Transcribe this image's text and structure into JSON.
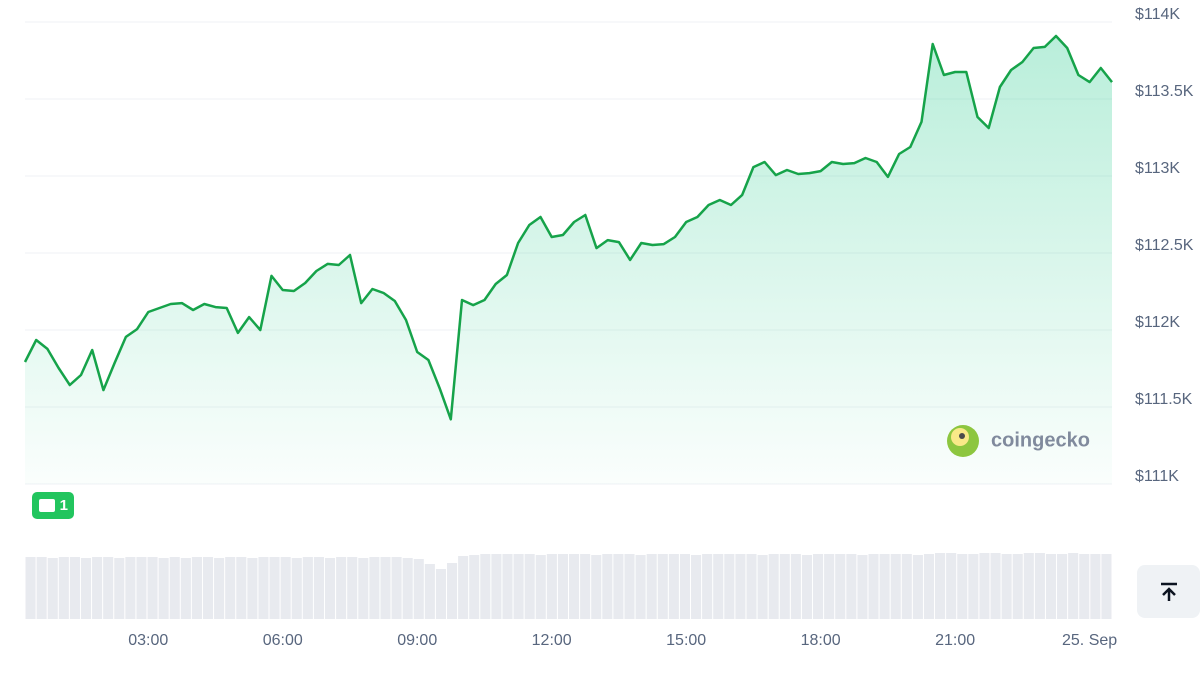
{
  "chart_data": {
    "type": "line",
    "x": [
      0.25,
      0.5,
      0.75,
      1,
      1.25,
      1.5,
      1.75,
      2,
      2.25,
      2.5,
      2.75,
      3,
      3.25,
      3.5,
      3.75,
      4,
      4.25,
      4.5,
      4.75,
      5,
      5.25,
      5.5,
      5.75,
      6,
      6.25,
      6.5,
      6.75,
      7,
      7.25,
      7.5,
      7.75,
      8,
      8.25,
      8.5,
      8.75,
      9,
      9.25,
      9.5,
      9.75,
      10,
      10.25,
      10.5,
      10.75,
      11,
      11.25,
      11.5,
      11.75,
      12,
      12.25,
      12.5,
      12.75,
      13,
      13.25,
      13.5,
      13.75,
      14,
      14.25,
      14.5,
      14.75,
      15,
      15.25,
      15.5,
      15.75,
      16,
      16.25,
      16.5,
      16.75,
      17,
      17.25,
      17.5,
      17.75,
      18,
      18.25,
      18.5,
      18.75,
      19,
      19.25,
      19.5,
      19.75,
      20,
      20.25,
      20.5,
      20.75,
      21,
      21.25,
      21.5,
      21.75,
      22,
      22.25,
      22.5,
      22.75,
      23,
      23.25,
      23.5,
      23.75,
      24,
      24.25,
      24.5
    ],
    "values": [
      111792,
      111935,
      111877,
      111753,
      111643,
      111708,
      111870,
      111610,
      111786,
      111955,
      112006,
      112117,
      112143,
      112169,
      112175,
      112130,
      112169,
      112149,
      112143,
      111981,
      112084,
      112000,
      112351,
      112260,
      112253,
      112305,
      112383,
      112429,
      112422,
      112487,
      112175,
      112266,
      112240,
      112188,
      112065,
      111857,
      111805,
      111623,
      111420,
      112195,
      112162,
      112195,
      112299,
      112357,
      112565,
      112682,
      112734,
      112604,
      112617,
      112701,
      112747,
      112532,
      112584,
      112571,
      112455,
      112565,
      112552,
      112558,
      112604,
      112701,
      112734,
      112812,
      112844,
      112812,
      112877,
      113058,
      113091,
      113006,
      113039,
      113013,
      113019,
      113032,
      113091,
      113078,
      113084,
      113117,
      113091,
      112994,
      113143,
      113188,
      113351,
      113857,
      113656,
      113675,
      113675,
      113383,
      113312,
      113578,
      113688,
      113740,
      113831,
      113838,
      113909,
      113831,
      113656,
      113610,
      113701,
      113610
    ],
    "volume": [
      62,
      62,
      61,
      62,
      62,
      61,
      62,
      62,
      61,
      62,
      62,
      62,
      61,
      62,
      61,
      62,
      62,
      61,
      62,
      62,
      61,
      62,
      62,
      62,
      61,
      62,
      62,
      61,
      62,
      62,
      61,
      62,
      62,
      62,
      61,
      60,
      55,
      50,
      56,
      63,
      64,
      65,
      65,
      65,
      65,
      65,
      64,
      65,
      65,
      65,
      65,
      64,
      65,
      65,
      65,
      64,
      65,
      65,
      65,
      65,
      64,
      65,
      65,
      65,
      65,
      65,
      64,
      65,
      65,
      65,
      64,
      65,
      65,
      65,
      65,
      64,
      65,
      65,
      65,
      65,
      64,
      65,
      66,
      66,
      65,
      65,
      66,
      66,
      65,
      65,
      66,
      66,
      65,
      65,
      66,
      65,
      65,
      65
    ],
    "color": "#16a34a",
    "xlim": [
      0.25,
      24.5
    ],
    "xticks": [
      {
        "value": 3,
        "label": "03:00"
      },
      {
        "value": 6,
        "label": "06:00"
      },
      {
        "value": 9,
        "label": "09:00"
      },
      {
        "value": 12,
        "label": "12:00"
      },
      {
        "value": 15,
        "label": "15:00"
      },
      {
        "value": 18,
        "label": "18:00"
      },
      {
        "value": 21,
        "label": "21:00"
      },
      {
        "value": 24,
        "label": "25. Sep"
      }
    ],
    "ylim": [
      111000,
      114000
    ],
    "yticks": [
      {
        "value": 111000,
        "label": "$111K"
      },
      {
        "value": 111500,
        "label": "$111.5K"
      },
      {
        "value": 112000,
        "label": "$112K"
      },
      {
        "value": 112500,
        "label": "$112.5K"
      },
      {
        "value": 113000,
        "label": "$113K"
      },
      {
        "value": 113500,
        "label": "$113.5K"
      },
      {
        "value": 114000,
        "label": "$114K"
      }
    ],
    "grid": true
  },
  "watermark": "coingecko",
  "news_count": "1"
}
